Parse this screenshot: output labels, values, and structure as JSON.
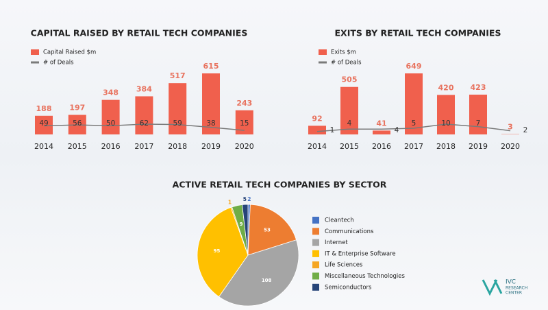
{
  "chart_data": [
    {
      "type": "bar",
      "title": "CAPITAL RAISED BY RETAIL TECH COMPANIES",
      "categories": [
        "2014",
        "2015",
        "2016",
        "2017",
        "2018",
        "2019",
        "2020"
      ],
      "series": [
        {
          "name": "Capital Raised $m",
          "type": "bar",
          "color": "#f0604d",
          "values": [
            188,
            197,
            348,
            384,
            517,
            615,
            243
          ]
        },
        {
          "name": "# of Deals",
          "type": "line",
          "color": "#7a7a7a",
          "values": [
            49,
            56,
            50,
            62,
            59,
            38,
            15
          ]
        }
      ]
    },
    {
      "type": "bar",
      "title": "EXITS BY RETAIL TECH COMPANIES",
      "categories": [
        "2014",
        "2015",
        "2016",
        "2017",
        "2018",
        "2019",
        "2020"
      ],
      "series": [
        {
          "name": "Exits $m",
          "type": "bar",
          "color": "#f0604d",
          "values": [
            92,
            505,
            41,
            649,
            420,
            423,
            3
          ]
        },
        {
          "name": "# of Deals",
          "type": "line",
          "color": "#7a7a7a",
          "values": [
            1,
            4,
            4,
            5,
            10,
            7,
            2
          ]
        }
      ]
    },
    {
      "type": "pie",
      "title": "ACTIVE RETAIL TECH COMPANIES BY SECTOR",
      "categories": [
        "Cleantech",
        "Communications",
        "Internet",
        "IT & Enterprise Software",
        "Life Sciences",
        "Miscellaneous Technologies",
        "Semiconductors"
      ],
      "values": [
        2,
        53,
        108,
        95,
        1,
        9,
        5
      ],
      "colors": [
        "#4472c4",
        "#ed7d31",
        "#a5a5a5",
        "#ffc000",
        "#f5a623",
        "#70ad47",
        "#264478"
      ]
    }
  ],
  "logo": {
    "name": "IVC",
    "line1": "RESEARCH",
    "line2": "CENTER"
  }
}
